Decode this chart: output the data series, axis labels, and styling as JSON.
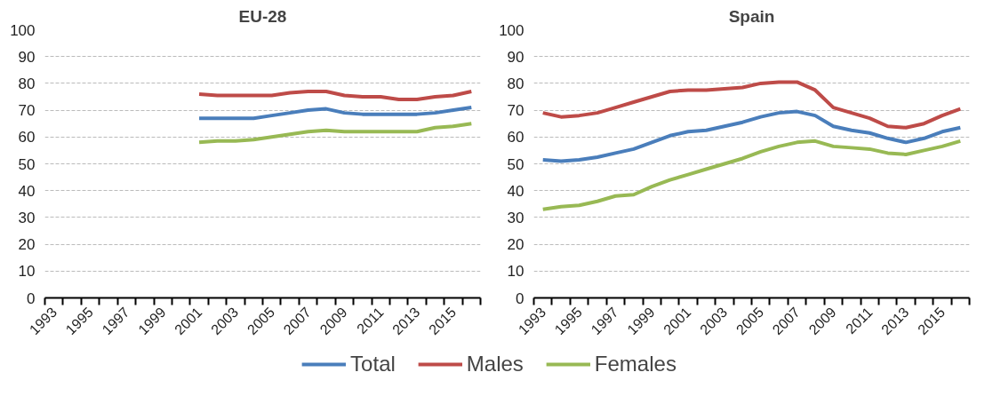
{
  "chart_data": [
    {
      "type": "line",
      "title": "EU-28",
      "categories": [
        "1993",
        null,
        "1995",
        null,
        "1997",
        null,
        "1999",
        null,
        "2001",
        null,
        "2003",
        null,
        "2005",
        null,
        "2007",
        null,
        "2009",
        null,
        "2011",
        null,
        "2013",
        null,
        "2015",
        null
      ],
      "series": [
        {
          "name": "Total",
          "color": "#4a7ebb",
          "values": [
            null,
            null,
            null,
            null,
            null,
            null,
            null,
            null,
            67,
            67,
            67,
            67,
            68,
            69,
            70,
            70.5,
            69,
            68.5,
            68.5,
            68.5,
            68.5,
            69,
            70,
            71
          ]
        },
        {
          "name": "Males",
          "color": "#be4b48",
          "values": [
            null,
            null,
            null,
            null,
            null,
            null,
            null,
            null,
            76,
            75.5,
            75.5,
            75.5,
            75.5,
            76.5,
            77,
            77,
            75.5,
            75,
            75,
            74,
            74,
            75,
            75.5,
            77
          ]
        },
        {
          "name": "Females",
          "color": "#98b954",
          "values": [
            null,
            null,
            null,
            null,
            null,
            null,
            null,
            null,
            58,
            58.5,
            58.5,
            59,
            60,
            61,
            62,
            62.5,
            62,
            62,
            62,
            62,
            62,
            63.5,
            64,
            65
          ]
        }
      ],
      "ylim": [
        0,
        100
      ],
      "yticks": [
        0,
        10,
        20,
        30,
        40,
        50,
        60,
        70,
        80,
        90,
        100
      ],
      "grid": "y",
      "legend": "bottom",
      "line_style": "solid",
      "marker": "none"
    },
    {
      "type": "line",
      "title": "Spain",
      "categories": [
        "1993",
        null,
        "1995",
        null,
        "1997",
        null,
        "1999",
        null,
        "2001",
        null,
        "2003",
        null,
        "2005",
        null,
        "2007",
        null,
        "2009",
        null,
        "2011",
        null,
        "2013",
        null,
        "2015",
        null
      ],
      "series": [
        {
          "color": "#4a7ebb",
          "values": [
            51.5,
            51,
            51.5,
            52.5,
            54,
            55.5,
            58,
            60.5,
            62,
            62.5,
            64,
            65.5,
            67.5,
            69,
            69.5,
            68,
            64,
            62.5,
            61.5,
            59.5,
            58,
            59.5,
            62,
            63.5
          ]
        },
        {
          "color": "#be4b48",
          "values": [
            69,
            67.5,
            68,
            69,
            71,
            73,
            75,
            77,
            77.5,
            77.5,
            78,
            78.5,
            80,
            80.5,
            80.5,
            77.5,
            71,
            69,
            67,
            64,
            63.5,
            65,
            68,
            70.5
          ]
        },
        {
          "color": "#98b954",
          "values": [
            33,
            34,
            34.5,
            36,
            38,
            38.5,
            41.5,
            44,
            46,
            48,
            50,
            52,
            54.5,
            56.5,
            58,
            58.5,
            56.5,
            56,
            55.5,
            54,
            53.5,
            55,
            56.5,
            58.5
          ]
        }
      ],
      "ylim": [
        0,
        100
      ],
      "yticks": [
        0,
        10,
        20,
        30,
        40,
        50,
        60,
        70,
        80,
        90,
        100
      ],
      "grid": "y",
      "line_style": "solid",
      "marker": "none"
    }
  ]
}
